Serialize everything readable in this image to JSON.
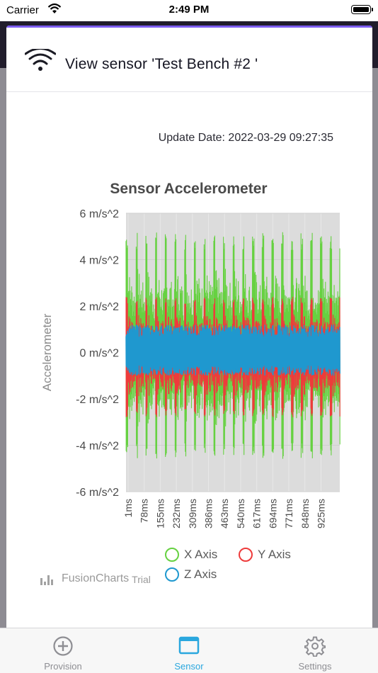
{
  "status_bar": {
    "carrier": "Carrier",
    "time": "2:49 PM"
  },
  "header": {
    "title": "View sensor 'Test Bench #2 '",
    "icon": "wifi-icon"
  },
  "update_date": "Update Date: 2022-03-29 09:27:35",
  "chart_data": {
    "type": "line",
    "title": "Sensor Accelerometer",
    "ylabel": "Accelerometer",
    "xlabel": "",
    "ylim": [
      -6,
      6
    ],
    "y_unit": "m/s^2",
    "y_ticks": [
      "6 m/s^2",
      "4 m/s^2",
      "2 m/s^2",
      "0 m/s^2",
      "-2 m/s^2",
      "-4 m/s^2",
      "-6 m/s^2"
    ],
    "y_tick_values": [
      6,
      4,
      2,
      0,
      -2,
      -4,
      -6
    ],
    "x_ticks": [
      "1ms",
      "78ms",
      "155ms",
      "232ms",
      "309ms",
      "386ms",
      "463ms",
      "540ms",
      "617ms",
      "694ms",
      "771ms",
      "848ms",
      "925ms"
    ],
    "x_range_ms": [
      1,
      1000
    ],
    "grid": true,
    "legend_placement": "bottom",
    "series": [
      {
        "name": "X Axis",
        "color": "#66d141",
        "amplitude_range": [
          -4.6,
          5.2
        ],
        "peaks_ms": [
          1,
          45,
          90,
          135,
          180,
          225,
          270,
          315,
          360,
          405,
          450,
          495,
          540,
          585,
          630,
          675,
          720,
          765,
          810,
          855,
          900,
          945,
          990
        ]
      },
      {
        "name": "Y Axis",
        "color": "#ee3b3b",
        "amplitude_range": [
          -2.8,
          2.4
        ],
        "peaks_ms": [
          1,
          45,
          90,
          135,
          180,
          225,
          270,
          315,
          360,
          405,
          450,
          495,
          540,
          585,
          630,
          675,
          720,
          765,
          810,
          855,
          900,
          945,
          990
        ]
      },
      {
        "name": "Z Axis",
        "color": "#1f98cf",
        "amplitude_range": [
          -1.0,
          1.2
        ]
      }
    ]
  },
  "credit": {
    "brand": "FusionCharts",
    "trial": "Trial"
  },
  "tabs": [
    {
      "label": "Provision",
      "icon": "plus-circle-icon",
      "active": false
    },
    {
      "label": "Sensor",
      "icon": "window-icon",
      "active": true
    },
    {
      "label": "Settings",
      "icon": "gear-icon",
      "active": false
    }
  ]
}
